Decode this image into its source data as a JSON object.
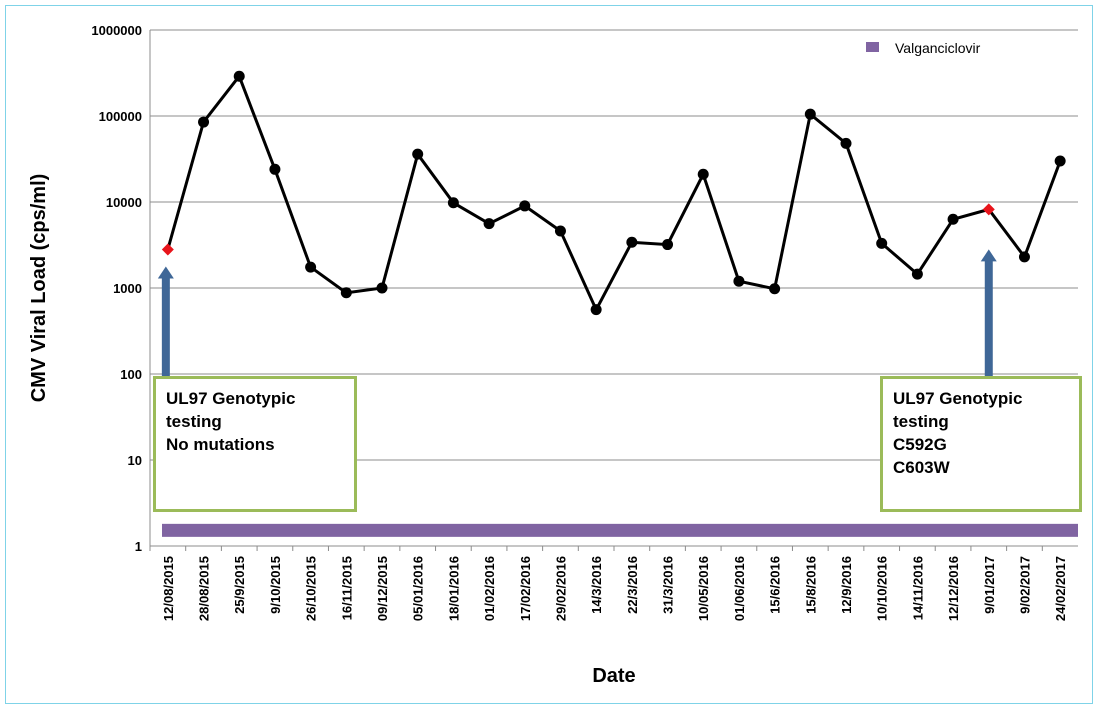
{
  "chart_data": {
    "type": "line",
    "title": "",
    "xlabel": "Date",
    "ylabel": "CMV  Viral Load (cps/ml)",
    "y_scale": "log",
    "ylim": [
      1,
      1000000
    ],
    "y_ticks": [
      "1",
      "10",
      "100",
      "1000",
      "10000",
      "100000",
      "1000000"
    ],
    "grid": true,
    "legend_position": "top-right",
    "x": [
      "12/08/2015",
      "28/08/2015",
      "25/9/2015",
      "9/10/2015",
      "26/10/2015",
      "16/11/2015",
      "09/12/2015",
      "05/01/2016",
      "18/01/2016",
      "01/02/2016",
      "17/02/2016",
      "29/02/2016",
      "14/3/2016",
      "22/3/2016",
      "31/3/2016",
      "10/05/2016",
      "01/06/2016",
      "15/6/2016",
      "15/8/2016",
      "12/9/2016",
      "10/10/2016",
      "14/11/2016",
      "12/12/2016",
      "9/01/2017",
      "9/02/2017",
      "24/02/2017"
    ],
    "series": [
      {
        "values": [
          2800,
          85000,
          290000,
          24000,
          1750,
          880,
          1000,
          36000,
          9800,
          5600,
          9000,
          4600,
          560,
          3400,
          3200,
          21000,
          1200,
          980,
          105000,
          48000,
          3300,
          1450,
          6300,
          8200,
          2300,
          30000
        ],
        "color": "#000000",
        "marker_color": "#000000",
        "highlight_indices": [
          0,
          23
        ],
        "highlight_color": "#e8141b"
      }
    ],
    "treatment_bar": {
      "name": "Valganciclovir",
      "color": "#8064a2",
      "y_value": 1.5
    },
    "annotations": [
      {
        "name": "genotypic-testing-1",
        "target_index": 0,
        "lines": [
          "UL97 Genotypic",
          "testing",
          "No mutations"
        ]
      },
      {
        "name": "genotypic-testing-2",
        "target_index": 23,
        "lines": [
          "UL97 Genotypic",
          "testing",
          "C592G",
          "C603W"
        ]
      }
    ],
    "arrow_color": "#3f6797",
    "annotation_border_color": "#9bbb59",
    "grid_color": "#8c8c8c"
  }
}
